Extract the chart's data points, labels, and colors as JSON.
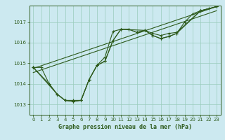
{
  "title": "Graphe pression niveau de la mer (hPa)",
  "bg_color": "#cce9f0",
  "line_color": "#2d5a1b",
  "grid_color": "#99ccbb",
  "xlim": [
    -0.5,
    23.5
  ],
  "ylim": [
    1012.5,
    1017.8
  ],
  "yticks": [
    1013,
    1014,
    1015,
    1016,
    1017
  ],
  "xticks": [
    0,
    1,
    2,
    3,
    4,
    5,
    6,
    7,
    8,
    9,
    10,
    11,
    12,
    13,
    14,
    15,
    16,
    17,
    18,
    19,
    20,
    21,
    22,
    23
  ],
  "series_main": {
    "x": [
      0,
      1,
      2,
      3,
      4,
      5,
      6,
      7,
      8,
      9,
      10,
      11,
      12,
      13,
      14,
      15,
      16,
      17,
      18,
      19,
      20,
      21,
      22,
      23
    ],
    "y": [
      1014.8,
      1014.8,
      1014.0,
      1013.5,
      1013.2,
      1013.2,
      1013.2,
      1014.2,
      1014.9,
      1015.1,
      1016.1,
      1016.65,
      1016.65,
      1016.5,
      1016.6,
      1016.35,
      1016.2,
      1016.3,
      1016.45,
      1017.0,
      1017.4,
      1017.55,
      1017.65,
      1017.75
    ]
  },
  "series_sparse1": {
    "x": [
      0,
      3,
      4,
      5,
      6,
      7,
      8,
      9,
      10,
      11,
      12,
      13,
      14,
      15,
      16,
      17,
      18,
      21,
      23
    ],
    "y": [
      1014.8,
      1013.5,
      1013.2,
      1013.15,
      1013.2,
      1014.2,
      1014.9,
      1015.1,
      1016.1,
      1016.65,
      1016.65,
      1016.5,
      1016.6,
      1016.35,
      1016.2,
      1016.3,
      1016.45,
      1017.55,
      1017.75
    ]
  },
  "series_sparse2": {
    "x": [
      0,
      2,
      3,
      4,
      5,
      6,
      7,
      8,
      9,
      10,
      11,
      14,
      15,
      16,
      17,
      18,
      21,
      23
    ],
    "y": [
      1014.8,
      1014.0,
      1013.5,
      1013.2,
      1013.15,
      1013.2,
      1014.2,
      1014.9,
      1015.3,
      1016.55,
      1016.65,
      1016.6,
      1016.45,
      1016.35,
      1016.45,
      1016.5,
      1017.55,
      1017.75
    ]
  },
  "trend1": {
    "x": [
      0,
      23
    ],
    "y": [
      1014.75,
      1017.75
    ]
  },
  "trend2": {
    "x": [
      0,
      23
    ],
    "y": [
      1014.55,
      1017.55
    ]
  }
}
